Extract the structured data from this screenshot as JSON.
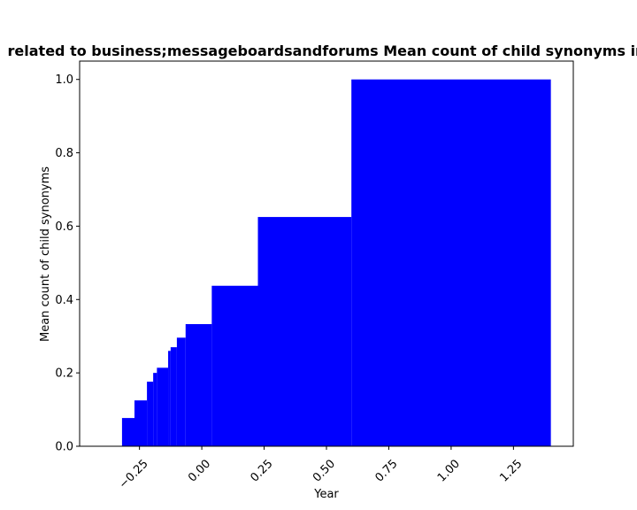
{
  "chart_data": {
    "type": "bar",
    "title": "related to business;messageboardsandforums Mean count of child synonyms in",
    "xlabel": "Year",
    "ylabel": "Mean count of child synonyms",
    "xlim": [
      -0.49,
      1.49
    ],
    "ylim": [
      0,
      1.05
    ],
    "x_ticks": [
      "−0.25",
      "0.00",
      "0.25",
      "0.50",
      "0.75",
      "1.00",
      "1.25"
    ],
    "x_tick_values": [
      -0.25,
      0.0,
      0.25,
      0.5,
      0.75,
      1.0,
      1.25
    ],
    "y_ticks": [
      "0.0",
      "0.2",
      "0.4",
      "0.6",
      "0.8",
      "1.0"
    ],
    "y_tick_values": [
      0.0,
      0.2,
      0.4,
      0.6,
      0.8,
      1.0
    ],
    "bar_color": "#0000ff",
    "bars": [
      {
        "x0": 1.4,
        "x1": 0.6,
        "value": 1.0
      },
      {
        "x0": 0.6,
        "x1": 0.225,
        "value": 0.625
      },
      {
        "x0": 0.225,
        "x1": 0.04,
        "value": 0.4375
      },
      {
        "x0": 0.04,
        "x1": -0.065,
        "value": 0.333
      },
      {
        "x0": -0.065,
        "x1": -0.1,
        "value": 0.296
      },
      {
        "x0": -0.1,
        "x1": -0.125,
        "value": 0.27
      },
      {
        "x0": -0.125,
        "x1": -0.135,
        "value": 0.26
      },
      {
        "x0": -0.135,
        "x1": -0.18,
        "value": 0.214
      },
      {
        "x0": -0.18,
        "x1": -0.195,
        "value": 0.2
      },
      {
        "x0": -0.195,
        "x1": -0.22,
        "value": 0.176
      },
      {
        "x0": -0.22,
        "x1": -0.27,
        "value": 0.125
      },
      {
        "x0": -0.27,
        "x1": -0.32,
        "value": 0.077
      }
    ]
  }
}
